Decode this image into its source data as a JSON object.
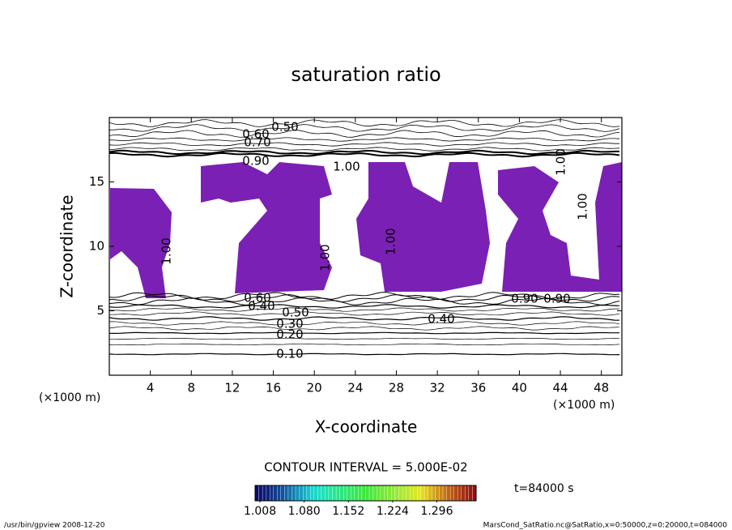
{
  "chart_data": {
    "type": "contour",
    "title": "saturation ratio",
    "x_label": "X-coordinate",
    "y_label": "Z-coordinate",
    "x_unit": "(×1000 m)",
    "y_unit": "(×1000 m)",
    "xlim": [
      0,
      50
    ],
    "xticks": [
      4,
      8,
      12,
      16,
      20,
      24,
      28,
      32,
      36,
      40,
      44,
      48
    ],
    "ylim": [
      0,
      20
    ],
    "yticks": [
      5,
      10,
      15
    ],
    "fill_color": "#7b20b4",
    "contour_labels": [
      "0.50",
      "0.60",
      "0.70",
      "0.90",
      "1.00",
      "1.00",
      "1.00",
      "1.00",
      "1.00",
      "1.00",
      "0.90",
      "0.90",
      "0.60",
      "0.50",
      "0.40",
      "0.40",
      "0.30",
      "0.20",
      "0.10"
    ],
    "contour_interval": "CONTOUR INTERVAL = 5.000E-02",
    "time_label": "t=84000 s",
    "colorbar": {
      "lim": [
        1.0,
        1.36
      ],
      "ticks": [
        1.008,
        {
          "value": 1.08,
          "label": "1.080"
        },
        1.152,
        1.224,
        1.296
      ]
    },
    "footer_left": "/usr/bin/gpview  2008-12-20",
    "footer_right": "MarsCond_SatRatio.nc@SatRatio,x=0:50000,z=0:20000,t=084000"
  }
}
